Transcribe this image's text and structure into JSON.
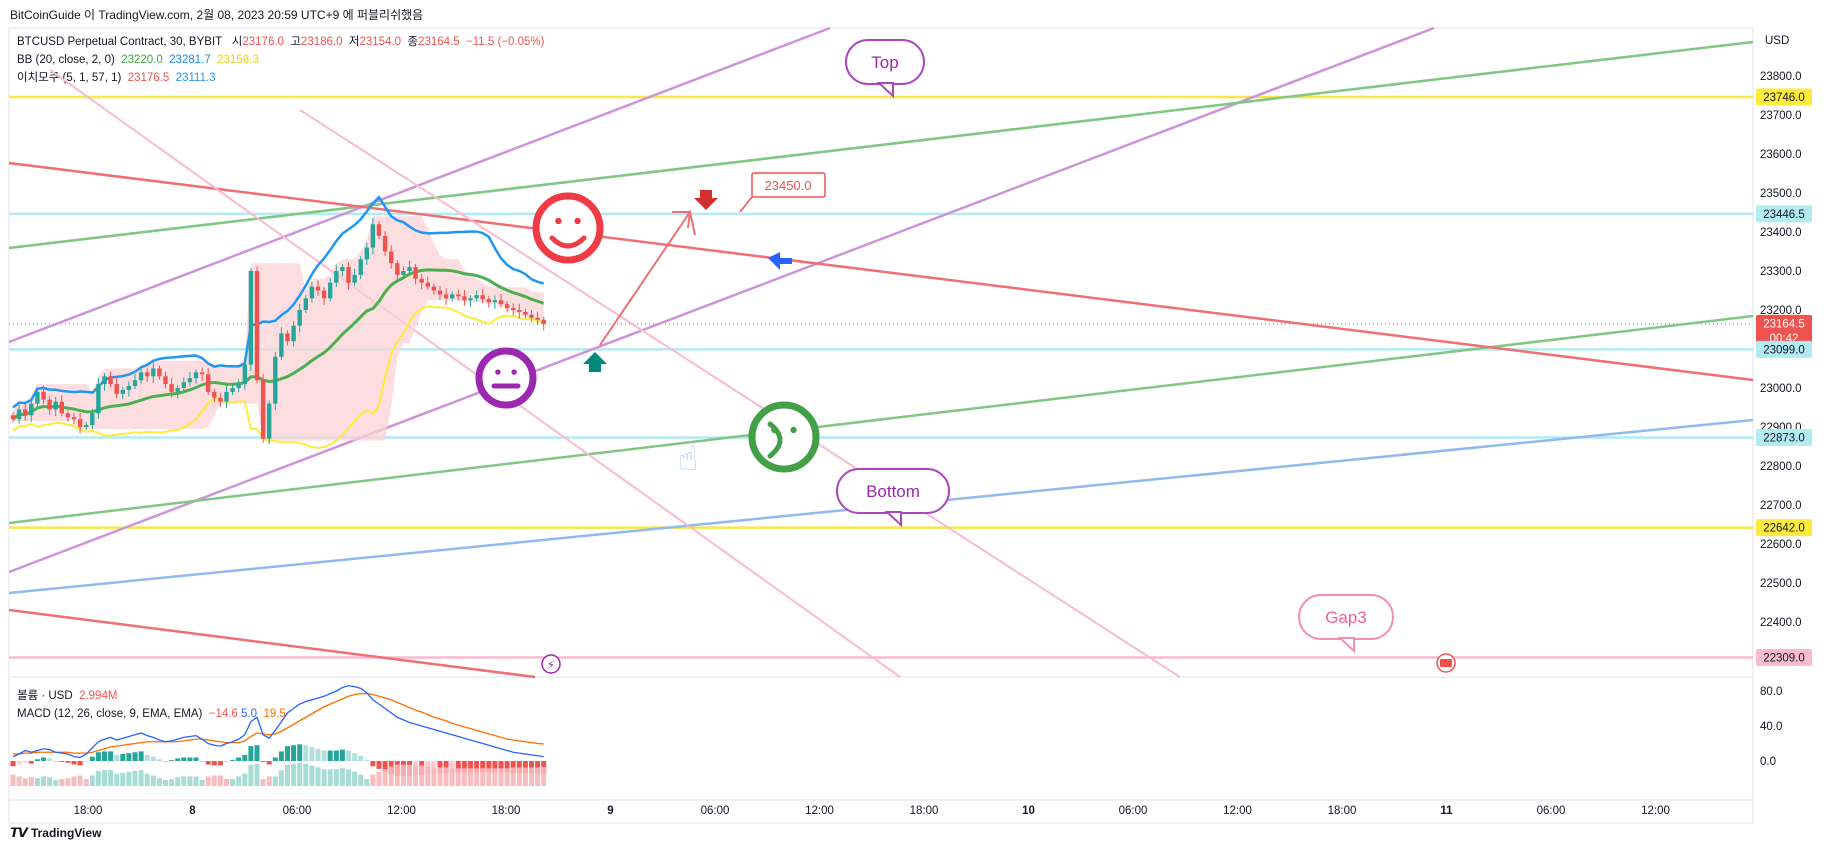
{
  "header": "BitCoinGuide 이 TradingView.com, 2월 08, 2023 20:59 UTC+9 에 퍼블리쉬했음",
  "symbol": {
    "name": "BTCUSD Perpetual Contract, 30, BYBIT",
    "o_label": "시",
    "o": "23176.0",
    "h_label": "고",
    "h": "23186.0",
    "l_label": "저",
    "l": "23154.0",
    "c_label": "종",
    "c": "23164.5",
    "chg": "−11.5 (−0.05%)"
  },
  "bb": {
    "name": "BB (20, close, 2, 0)",
    "basis": "23220.0",
    "upper": "23281.7",
    "lower": "23158.3"
  },
  "ichimoku": {
    "name": "이치모쿠 (5, 1, 57, 1)",
    "v1": "23176.5",
    "v2": "23111.3"
  },
  "volume": {
    "name": "볼륨 · USD",
    "value": "2.994M"
  },
  "macd": {
    "name": "MACD (12, 26, close, 9, EMA, EMA)",
    "hist": "−14.6",
    "macd": "5.0",
    "signal": "19.5"
  },
  "footer": "TradingView",
  "colors": {
    "up": "#26a69a",
    "down": "#ef5350",
    "bb_basis": "#4caf50",
    "bb_upper": "#2196f3",
    "bb_lower": "#ffeb3b",
    "accent": "#9c27b0"
  },
  "chart_data": [
    {
      "type": "candlestick",
      "currency": "USD",
      "y_ticks": [
        22400,
        22500,
        22600,
        22700,
        22800,
        22900,
        23000,
        23100,
        23200,
        23300,
        23400,
        23500,
        23600,
        23700,
        23800
      ],
      "ylim": [
        22300,
        23900
      ],
      "x_ticks": [
        "18:00",
        "8",
        "06:00",
        "12:00",
        "18:00",
        "9",
        "06:00",
        "12:00",
        "18:00",
        "10",
        "06:00",
        "12:00",
        "18:00",
        "11",
        "06:00",
        "12:00"
      ],
      "price_labels": [
        {
          "value": "23746.0",
          "color": "#ffeb3b"
        },
        {
          "value": "23446.5",
          "color": "#b2ebf2"
        },
        {
          "value": "23164.5",
          "color": "#ef5350",
          "sub": "00:42"
        },
        {
          "value": "23099.0",
          "color": "#b2ebf2"
        },
        {
          "value": "22873.0",
          "color": "#b2ebf2"
        },
        {
          "value": "22642.0",
          "color": "#ffeb3b"
        },
        {
          "value": "22309.0",
          "color": "#f8bbd0"
        }
      ],
      "annotations": {
        "top": "Top",
        "bottom": "Bottom",
        "gap": "Gap3",
        "target": "23450.0"
      },
      "close": [
        22920,
        22945,
        22930,
        22960,
        22990,
        22970,
        22945,
        22965,
        22935,
        22925,
        22920,
        22900,
        22905,
        22935,
        23010,
        23030,
        23010,
        22985,
        22995,
        23005,
        23020,
        23040,
        23030,
        23050,
        23030,
        23010,
        22990,
        23000,
        23015,
        23025,
        23040,
        23035,
        22990,
        22975,
        22965,
        22990,
        23000,
        23010,
        23060,
        23300,
        23020,
        22870,
        22960,
        23080,
        23140,
        23120,
        23160,
        23200,
        23230,
        23260,
        23250,
        23230,
        23270,
        23300,
        23310,
        23270,
        23290,
        23330,
        23360,
        23420,
        23390,
        23350,
        23320,
        23290,
        23300,
        23310,
        23280,
        23270,
        23260,
        23250,
        23240,
        23230,
        23240,
        23235,
        23225,
        23230,
        23238,
        23228,
        23220,
        23225,
        23215,
        23205,
        23200,
        23195,
        23188,
        23180,
        23175,
        23164.5
      ]
    },
    {
      "type": "macd",
      "y_ticks": [
        0.0,
        40.0,
        80.0
      ],
      "ylim": [
        -40,
        100
      ],
      "macd": [
        5,
        8,
        12,
        10,
        12,
        14,
        13,
        10,
        9,
        8,
        5,
        4,
        8,
        15,
        22,
        25,
        27,
        24,
        26,
        28,
        30,
        32,
        29,
        27,
        24,
        22,
        23,
        25,
        27,
        28,
        29,
        25,
        20,
        18,
        17,
        20,
        22,
        25,
        30,
        45,
        50,
        30,
        26,
        35,
        45,
        55,
        60,
        65,
        68,
        70,
        72,
        74,
        77,
        80,
        84,
        86,
        85,
        83,
        78,
        70,
        65,
        60,
        55,
        50,
        47,
        44,
        42,
        40,
        38,
        36,
        34,
        32,
        30,
        28,
        26,
        24,
        22,
        20,
        18,
        16,
        14,
        12,
        10,
        9,
        8,
        7,
        6,
        5
      ],
      "signal": [
        8,
        8,
        9,
        9,
        10,
        10,
        10,
        10,
        10,
        10,
        9,
        9,
        9,
        10,
        12,
        14,
        16,
        17,
        18,
        19,
        20,
        21,
        22,
        22,
        22,
        22,
        22,
        22,
        23,
        24,
        25,
        25,
        24,
        23,
        22,
        21,
        21,
        21,
        23,
        28,
        32,
        31,
        30,
        31,
        34,
        38,
        42,
        46,
        50,
        54,
        58,
        62,
        65,
        68,
        71,
        74,
        76,
        77,
        77,
        76,
        74,
        72,
        70,
        67,
        64,
        61,
        58,
        56,
        53,
        50,
        48,
        46,
        43,
        41,
        39,
        37,
        35,
        33,
        31,
        29,
        27,
        25,
        24,
        23,
        22,
        21,
        20,
        19.5
      ],
      "hist": [
        -6,
        -4,
        -2,
        -3,
        2,
        4,
        3,
        0,
        -1,
        -2,
        -4,
        -5,
        -1,
        5,
        10,
        11,
        11,
        7,
        8,
        9,
        10,
        11,
        7,
        5,
        2,
        0,
        1,
        3,
        4,
        4,
        4,
        0,
        -4,
        -5,
        -5,
        -1,
        1,
        4,
        7,
        17,
        18,
        -1,
        -4,
        4,
        11,
        17,
        18,
        19,
        18,
        16,
        14,
        12,
        12,
        12,
        13,
        12,
        9,
        6,
        1,
        -6,
        -9,
        -12,
        -15,
        -17,
        -17,
        -17,
        -16,
        -16,
        -15,
        -14,
        -14,
        -14,
        -13,
        -13,
        -13,
        -13,
        -13,
        -13,
        -13,
        -13,
        -13,
        -13,
        -14,
        -14,
        -14,
        -14,
        -14,
        -14.6
      ]
    }
  ]
}
